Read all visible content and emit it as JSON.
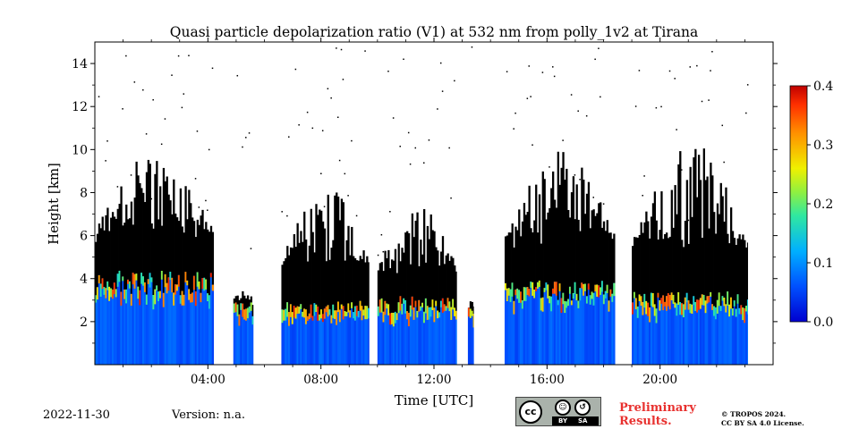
{
  "chart_data": {
    "type": "heatmap",
    "title": "Quasi particle depolarization ratio (V1) at 532 nm from polly_1v2 at Tirana",
    "xlabel": "Time [UTC]",
    "ylabel": "Height [km]",
    "xlim": [
      0,
      24
    ],
    "ylim": [
      0,
      15
    ],
    "x_ticks": [
      {
        "value": 4,
        "label": "04:00"
      },
      {
        "value": 8,
        "label": "08:00"
      },
      {
        "value": 12,
        "label": "12:00"
      },
      {
        "value": 16,
        "label": "16:00"
      },
      {
        "value": 20,
        "label": "20:00"
      }
    ],
    "y_ticks": [
      {
        "value": 2,
        "label": "2"
      },
      {
        "value": 4,
        "label": "4"
      },
      {
        "value": 6,
        "label": "6"
      },
      {
        "value": 8,
        "label": "8"
      },
      {
        "value": 10,
        "label": "10"
      },
      {
        "value": 12,
        "label": "12"
      },
      {
        "value": 14,
        "label": "14"
      }
    ],
    "colorbar": {
      "range": [
        0,
        0.4
      ],
      "colormap": "jet",
      "ticks": [
        {
          "value": 0.0,
          "label": "0.0"
        },
        {
          "value": 0.1,
          "label": "0.1"
        },
        {
          "value": 0.2,
          "label": "0.2"
        },
        {
          "value": 0.3,
          "label": "0.3"
        },
        {
          "value": 0.4,
          "label": "0.4"
        }
      ]
    },
    "masked_color": "#000000",
    "data_gaps_utc": [
      [
        4.2,
        4.9
      ],
      [
        5.6,
        6.6
      ],
      [
        9.7,
        10.0
      ],
      [
        12.8,
        13.2
      ],
      [
        13.4,
        14.5
      ],
      [
        18.4,
        19.0
      ],
      [
        23.1,
        24.0
      ]
    ],
    "segments": [
      {
        "start": 0.0,
        "end": 4.2,
        "layer_top_km": 3.8,
        "cloud_top_km": 10.3
      },
      {
        "start": 4.9,
        "end": 5.6,
        "layer_top_km": 2.6,
        "cloud_top_km": 3.5
      },
      {
        "start": 6.6,
        "end": 9.7,
        "layer_top_km": 2.6,
        "cloud_top_km": 8.5
      },
      {
        "start": 10.0,
        "end": 12.8,
        "layer_top_km": 2.8,
        "cloud_top_km": 7.5
      },
      {
        "start": 13.2,
        "end": 13.4,
        "layer_top_km": 2.6,
        "cloud_top_km": 3.0
      },
      {
        "start": 14.5,
        "end": 18.4,
        "layer_top_km": 3.4,
        "cloud_top_km": 10.0
      },
      {
        "start": 19.0,
        "end": 23.1,
        "layer_top_km": 3.0,
        "cloud_top_km": 10.4
      }
    ]
  },
  "footer": {
    "date": "2022-11-30",
    "version": "Version: n.a.",
    "preliminary_line1": "Preliminary",
    "preliminary_line2": "Results.",
    "copyright_line1": "© TROPOS 2024.",
    "copyright_line2": "CC BY SA 4.0 License.",
    "cc_main": "cc",
    "cc_by_icon": "person-icon",
    "cc_sa_icon": "share-alike-icon",
    "cc_by_label": "BY",
    "cc_sa_label": "SA"
  }
}
